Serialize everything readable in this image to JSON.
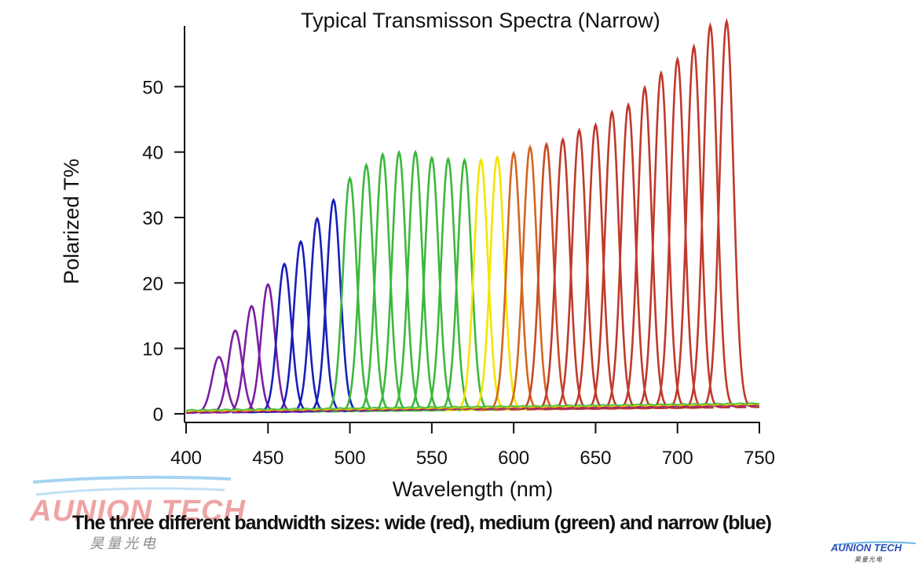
{
  "chart_data": {
    "type": "line",
    "title": "Typical Transmisson Spectra (Narrow)",
    "xlabel": "Wavelength (nm)",
    "ylabel": "Polarized T%",
    "xlim": [
      400,
      750
    ],
    "ylim": [
      0,
      60
    ],
    "xticks": [
      400,
      450,
      500,
      550,
      600,
      650,
      700,
      750
    ],
    "yticks": [
      0,
      10,
      20,
      30,
      40,
      50
    ],
    "grid": false,
    "legend": "none",
    "series": [
      {
        "center": 420,
        "peak": 8.5,
        "color": "#7b1fa2"
      },
      {
        "center": 430,
        "peak": 12.5,
        "color": "#7b1fa2"
      },
      {
        "center": 440,
        "peak": 16.2,
        "color": "#7b1fa2"
      },
      {
        "center": 450,
        "peak": 19.5,
        "color": "#7b1fa2"
      },
      {
        "center": 460,
        "peak": 22.6,
        "color": "#1a1fb8"
      },
      {
        "center": 470,
        "peak": 26.0,
        "color": "#1a1fb8"
      },
      {
        "center": 480,
        "peak": 29.5,
        "color": "#1a1fb8"
      },
      {
        "center": 490,
        "peak": 32.3,
        "color": "#1a1fb8"
      },
      {
        "center": 500,
        "peak": 35.6,
        "color": "#3cb83c"
      },
      {
        "center": 510,
        "peak": 37.6,
        "color": "#3cb83c"
      },
      {
        "center": 520,
        "peak": 39.2,
        "color": "#3cb83c"
      },
      {
        "center": 530,
        "peak": 39.5,
        "color": "#3cb83c"
      },
      {
        "center": 540,
        "peak": 39.5,
        "color": "#3cb83c"
      },
      {
        "center": 550,
        "peak": 38.6,
        "color": "#3cb83c"
      },
      {
        "center": 560,
        "peak": 38.4,
        "color": "#3cb83c"
      },
      {
        "center": 570,
        "peak": 38.2,
        "color": "#3cb83c"
      },
      {
        "center": 580,
        "peak": 38.2,
        "color": "#f2e600"
      },
      {
        "center": 590,
        "peak": 38.6,
        "color": "#f2e600"
      },
      {
        "center": 600,
        "peak": 39.2,
        "color": "#d4661e"
      },
      {
        "center": 610,
        "peak": 40.1,
        "color": "#d4661e"
      },
      {
        "center": 620,
        "peak": 40.5,
        "color": "#c84a24"
      },
      {
        "center": 630,
        "peak": 41.2,
        "color": "#c0392b"
      },
      {
        "center": 640,
        "peak": 42.6,
        "color": "#c0392b"
      },
      {
        "center": 650,
        "peak": 43.4,
        "color": "#c0392b"
      },
      {
        "center": 660,
        "peak": 45.3,
        "color": "#c0392b"
      },
      {
        "center": 670,
        "peak": 46.4,
        "color": "#c0392b"
      },
      {
        "center": 680,
        "peak": 49.0,
        "color": "#c0392b"
      },
      {
        "center": 690,
        "peak": 51.2,
        "color": "#c0392b"
      },
      {
        "center": 700,
        "peak": 53.3,
        "color": "#c0392b"
      },
      {
        "center": 710,
        "peak": 55.2,
        "color": "#c0392b"
      },
      {
        "center": 720,
        "peak": 58.4,
        "color": "#c0392b"
      },
      {
        "center": 730,
        "peak": 59.0,
        "color": "#c0392b"
      }
    ]
  },
  "caption": "The three different bandwidth sizes: wide (red), medium (green) and narrow (blue)",
  "watermark": {
    "name": "AUNION TECH",
    "cn": "昊量光电"
  },
  "logo": {
    "name": "AUNION TECH",
    "cn": "昊量光电"
  }
}
